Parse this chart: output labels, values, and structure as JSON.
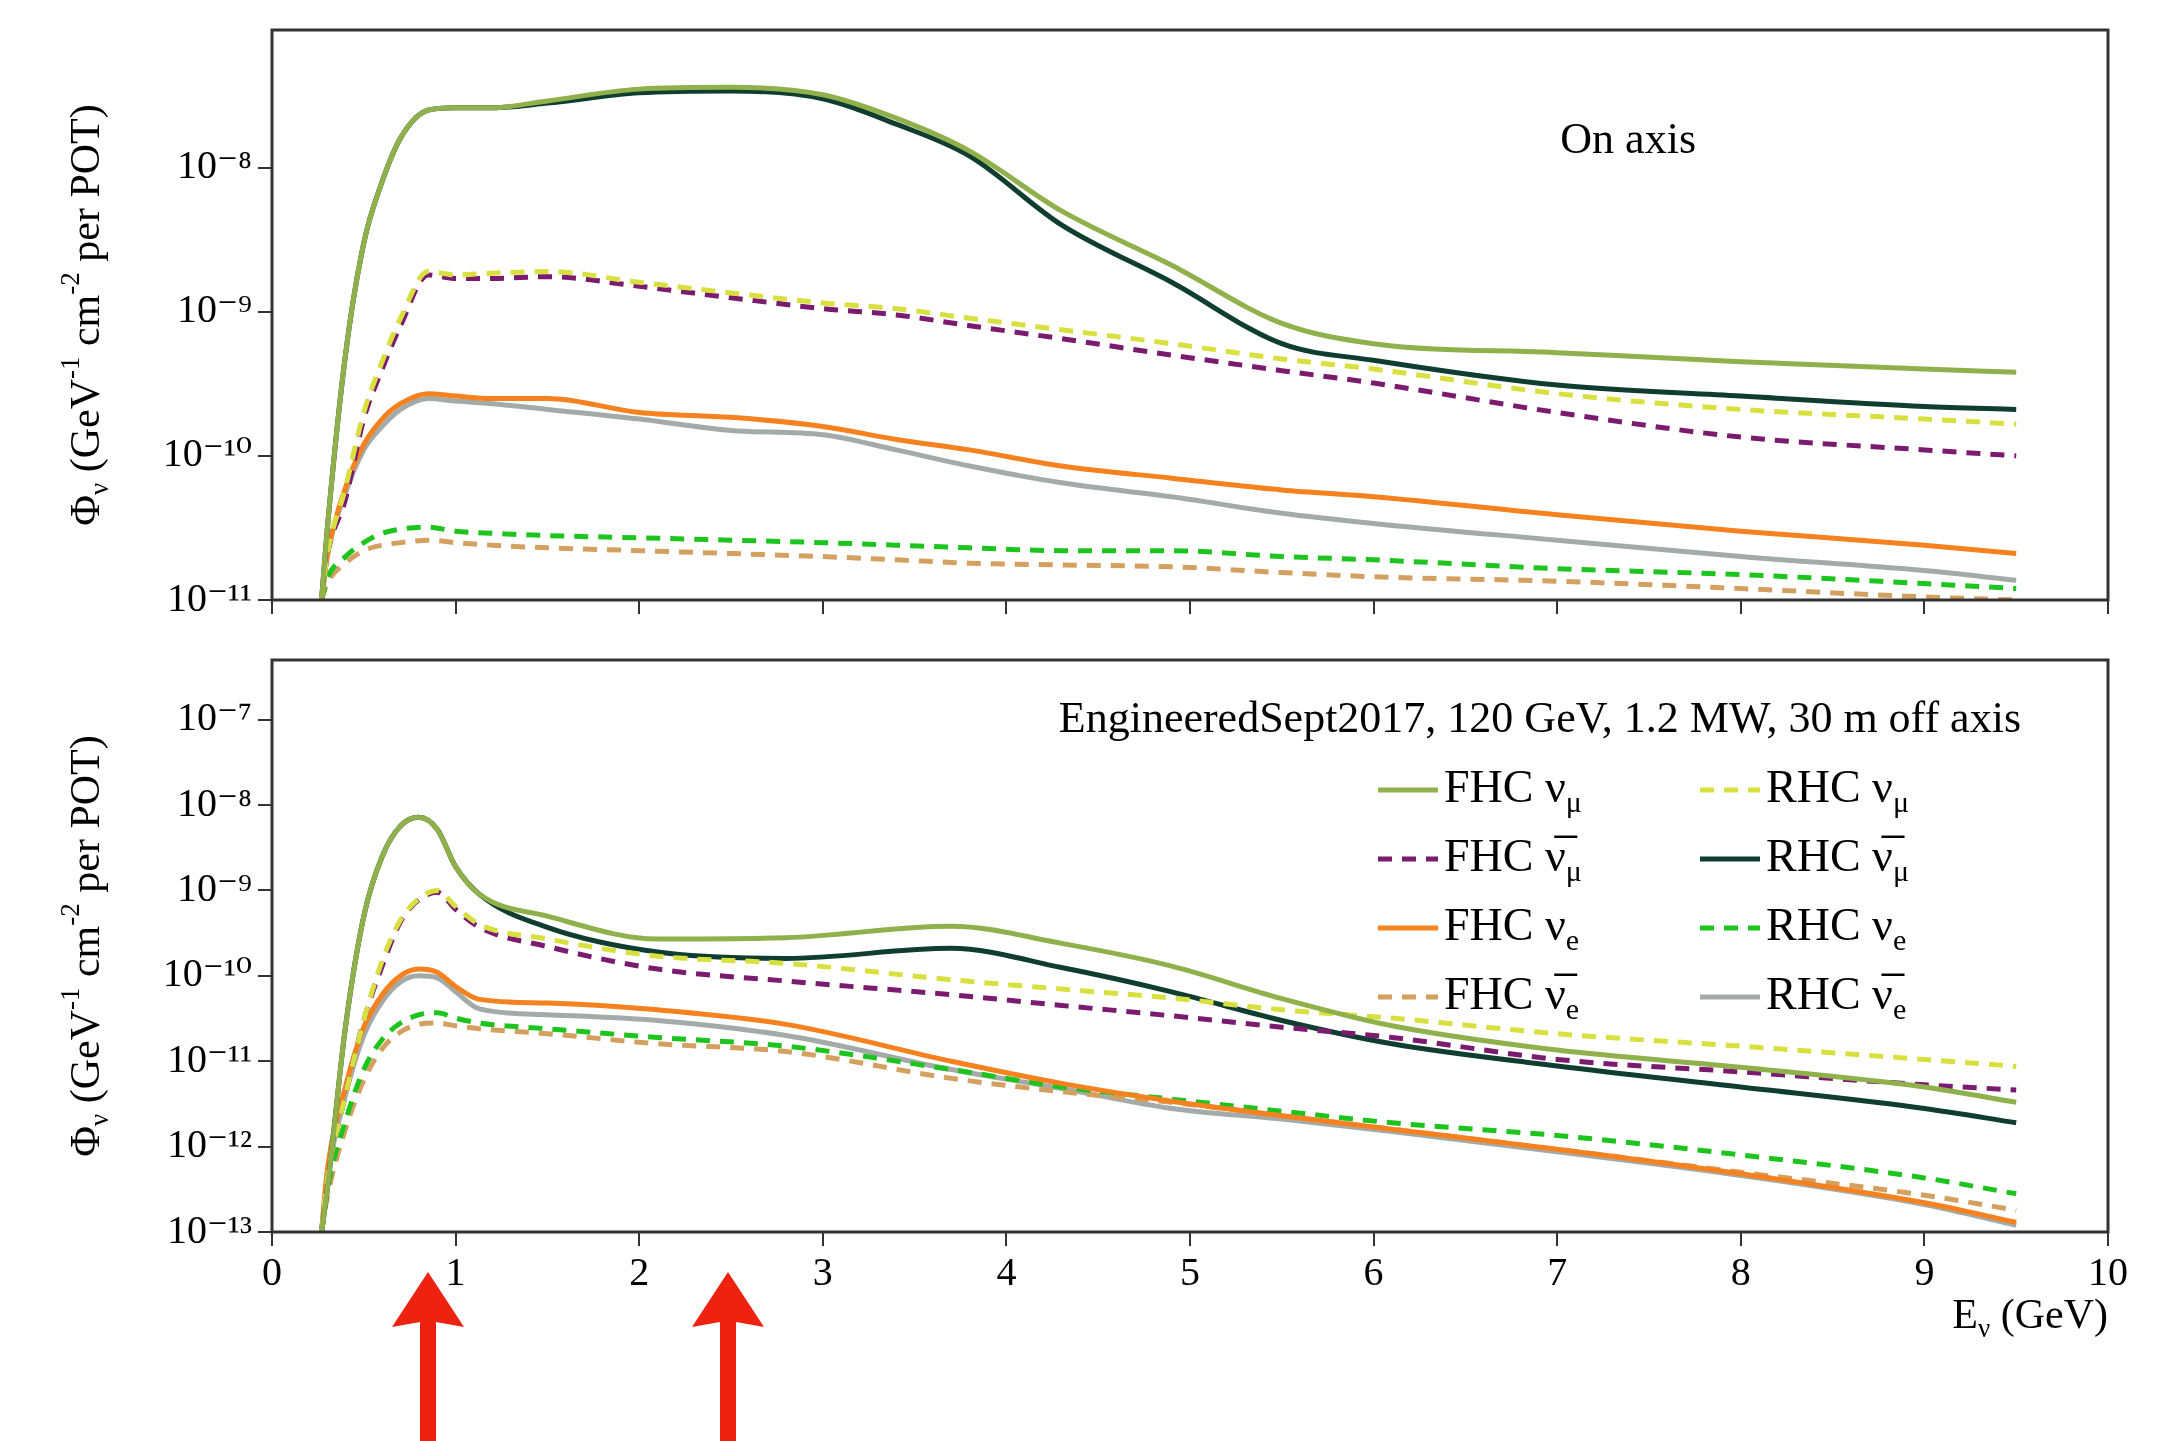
{
  "chart_data": [
    {
      "type": "line",
      "x": [
        0.27,
        0.3,
        0.4,
        0.5,
        0.6,
        0.7,
        0.85,
        1.0,
        1.2,
        1.5,
        2.0,
        2.5,
        3.0,
        3.4,
        3.8,
        4.3,
        4.9,
        5.5,
        6.0,
        7.0,
        8.0,
        9.0,
        9.5
      ],
      "series": [
        {
          "color": "#8fb04a",
          "line_style": "solid",
          "values": [
            1e-11,
            3e-11,
            5e-10,
            3e-09,
            8e-09,
            1.6e-08,
            2.5e-08,
            2.6e-08,
            2.6e-08,
            2.9e-08,
            3.5e-08,
            3.6e-08,
            3.2e-08,
            2.2e-08,
            1.3e-08,
            5e-09,
            2.1e-09,
            8.3e-10,
            6e-10,
            5.2e-10,
            4.5e-10,
            4e-10,
            3.8e-10
          ]
        },
        {
          "color": "#d8e040",
          "line_style": "dashed",
          "values": [
            1e-11,
            2e-11,
            6e-11,
            2e-10,
            4.5e-10,
            9e-10,
            1.9e-09,
            1.8e-09,
            1.85e-09,
            1.9e-09,
            1.6e-09,
            1.35e-09,
            1.15e-09,
            1.05e-09,
            9e-10,
            7.5e-10,
            6e-10,
            4.7e-10,
            4e-10,
            2.7e-10,
            2.1e-10,
            1.8e-10,
            1.66e-10
          ]
        },
        {
          "color": "#7b1b70",
          "line_style": "dashed",
          "values": [
            1e-11,
            2e-11,
            5e-11,
            1.8e-10,
            4e-10,
            8e-10,
            1.8e-09,
            1.7e-09,
            1.7e-09,
            1.75e-09,
            1.5e-09,
            1.25e-09,
            1.05e-09,
            9.5e-10,
            8e-10,
            6.5e-10,
            5e-10,
            3.9e-10,
            3.2e-10,
            2e-10,
            1.35e-10,
            1.1e-10,
            1e-10
          ]
        },
        {
          "color": "#0f3d30",
          "line_style": "solid",
          "values": [
            1e-11,
            3e-11,
            5e-10,
            3e-09,
            8e-09,
            1.6e-08,
            2.5e-08,
            2.6e-08,
            2.6e-08,
            2.8e-08,
            3.3e-08,
            3.4e-08,
            3e-08,
            2e-08,
            1.2e-08,
            4e-09,
            1.6e-09,
            6e-10,
            4.6e-10,
            3.1e-10,
            2.6e-10,
            2.2e-10,
            2.1e-10
          ]
        },
        {
          "color": "#f5821f",
          "line_style": "solid",
          "values": [
            1e-11,
            2e-11,
            6e-11,
            1.2e-10,
            1.8e-10,
            2.3e-10,
            2.7e-10,
            2.6e-10,
            2.5e-10,
            2.5e-10,
            2e-10,
            1.85e-10,
            1.6e-10,
            1.3e-10,
            1.1e-10,
            8.5e-11,
            7e-11,
            5.8e-11,
            5.2e-11,
            3.9e-11,
            3e-11,
            2.4e-11,
            2.1e-11
          ]
        },
        {
          "color": "#1ec41e",
          "line_style": "dashed",
          "values": [
            1e-11,
            1.4e-11,
            2e-11,
            2.5e-11,
            2.9e-11,
            3.1e-11,
            3.2e-11,
            3e-11,
            2.9e-11,
            2.8e-11,
            2.7e-11,
            2.6e-11,
            2.5e-11,
            2.4e-11,
            2.3e-11,
            2.2e-11,
            2.2e-11,
            2e-11,
            1.9e-11,
            1.65e-11,
            1.5e-11,
            1.3e-11,
            1.2e-11
          ]
        },
        {
          "color": "#d4a060",
          "line_style": "dashed",
          "values": [
            1e-11,
            1.3e-11,
            1.8e-11,
            2.2e-11,
            2.4e-11,
            2.5e-11,
            2.6e-11,
            2.5e-11,
            2.4e-11,
            2.3e-11,
            2.2e-11,
            2.1e-11,
            2e-11,
            1.9e-11,
            1.8e-11,
            1.75e-11,
            1.7e-11,
            1.55e-11,
            1.45e-11,
            1.35e-11,
            1.2e-11,
            1.05e-11,
            1e-11
          ]
        },
        {
          "color": "#a3abaa",
          "line_style": "solid",
          "values": [
            1e-11,
            2e-11,
            5.5e-11,
            1.1e-10,
            1.6e-10,
            2.1e-10,
            2.5e-10,
            2.4e-10,
            2.3e-10,
            2.1e-10,
            1.8e-10,
            1.5e-10,
            1.4e-10,
            1.1e-10,
            8.5e-11,
            6.5e-11,
            5.2e-11,
            4e-11,
            3.4e-11,
            2.6e-11,
            2e-11,
            1.6e-11,
            1.37e-11
          ]
        }
      ],
      "ylabel": "Φ$_{ν}$ (GeV$^{-1}$ cm$^{-2}$ per POT)",
      "annotations": [
        "On axis"
      ],
      "log": "y",
      "grid": false,
      "legend": false,
      "marker": "none",
      "tick_labels": "y",
      "xlim": [
        0,
        10
      ],
      "xticks": [
        0,
        1,
        2,
        3,
        4,
        5,
        6,
        7,
        8,
        9,
        10
      ],
      "ylim": [
        1e-11,
        9e-08
      ],
      "yticks": [
        {
          "value": 1e-11,
          "label": "10⁻¹¹"
        },
        {
          "value": 1e-10,
          "label": "10⁻¹⁰"
        },
        {
          "value": 1e-09,
          "label": "10⁻⁹"
        },
        {
          "value": 1e-08,
          "label": "10⁻⁸"
        }
      ]
    },
    {
      "type": "line",
      "x": [
        0.27,
        0.3,
        0.4,
        0.5,
        0.6,
        0.7,
        0.8,
        0.9,
        1.0,
        1.13,
        1.5,
        2.1,
        2.8,
        3.7,
        4.3,
        4.9,
        5.5,
        6.1,
        7.0,
        8.0,
        9.0,
        9.5
      ],
      "series": [
        {
          "name": "FHC ν$_{μ}$",
          "color": "#8fb04a",
          "line_style": "solid",
          "values": [
            1e-13,
            3e-13,
            2.5e-11,
            5e-10,
            2.5e-09,
            5.7e-09,
            7.2e-09,
            5.2e-09,
            1.9e-09,
            9e-10,
            5e-10,
            2.7e-10,
            2.8e-10,
            3.8e-10,
            2.4e-10,
            1.3e-10,
            5.4e-11,
            2.6e-11,
            1.35e-11,
            8.5e-12,
            5e-12,
            3.3e-12
          ]
        },
        {
          "name": "RHC ν$_{μ}$",
          "color": "#d8e040",
          "line_style": "dashed",
          "values": [
            1e-13,
            4e-13,
            4e-12,
            3e-11,
            1.5e-10,
            4.5e-10,
            8e-10,
            1e-09,
            6.5e-10,
            4e-10,
            2.7e-10,
            1.7e-10,
            1.4e-10,
            9e-11,
            7e-11,
            5.5e-11,
            4e-11,
            3.2e-11,
            2.1e-11,
            1.5e-11,
            1.05e-11,
            8.7e-12
          ]
        },
        {
          "name": "FHC ν̅$_{μ}$",
          "color": "#7b1b70",
          "line_style": "dashed",
          "values": [
            1e-13,
            4e-13,
            4e-12,
            3e-11,
            1.3e-10,
            4.3e-10,
            7.8e-10,
            9.5e-10,
            6e-10,
            3.7e-10,
            2.2e-10,
            1.2e-10,
            8.7e-11,
            6e-11,
            4.5e-11,
            3.4e-11,
            2.5e-11,
            1.9e-11,
            1.05e-11,
            7.5e-12,
            5.3e-12,
            4.6e-12
          ]
        },
        {
          "name": "RHC ν̅$_{μ}$",
          "color": "#0f3d30",
          "line_style": "solid",
          "values": [
            1e-13,
            3e-13,
            2.5e-11,
            5e-10,
            2.5e-09,
            5.7e-09,
            7.2e-09,
            5.2e-09,
            1.9e-09,
            9e-10,
            3.7e-10,
            1.9e-10,
            1.6e-10,
            2.1e-10,
            1.25e-10,
            6.5e-11,
            3e-11,
            1.6e-11,
            8.8e-12,
            5e-12,
            2.8e-12,
            1.9e-12
          ]
        },
        {
          "name": "FHC ν$_{e}$",
          "color": "#f5821f",
          "line_style": "solid",
          "values": [
            1e-13,
            5e-13,
            5e-12,
            2.5e-11,
            6e-11,
            1e-10,
            1.2e-10,
            1.1e-10,
            7.5e-11,
            5.3e-11,
            4.8e-11,
            4e-11,
            2.7e-11,
            1e-11,
            5.5e-12,
            3.4e-12,
            2.3e-12,
            1.6e-12,
            9.3e-13,
            4.8e-13,
            2.2e-13,
            1.3e-13
          ]
        },
        {
          "name": "RHC ν$_{e}$",
          "color": "#1ec41e",
          "line_style": "dashed",
          "values": [
            1e-13,
            3e-13,
            2e-12,
            8e-12,
            1.8e-11,
            2.8e-11,
            3.5e-11,
            3.7e-11,
            3.2e-11,
            2.8e-11,
            2.4e-11,
            1.9e-11,
            1.5e-11,
            8e-12,
            5e-12,
            3.6e-12,
            2.6e-12,
            1.9e-12,
            1.35e-12,
            8e-13,
            4.3e-13,
            2.8e-13
          ]
        },
        {
          "name": "FHC ν̅$_{e}$",
          "color": "#d4a060",
          "line_style": "dashed",
          "values": [
            1e-13,
            2.5e-13,
            1.6e-12,
            6e-12,
            1.4e-11,
            2.2e-11,
            2.7e-11,
            2.8e-11,
            2.6e-11,
            2.4e-11,
            2.1e-11,
            1.6e-11,
            1.3e-11,
            6.3e-12,
            4.4e-12,
            3.3e-12,
            2.3e-12,
            1.6e-12,
            9.3e-13,
            5e-13,
            2.7e-13,
            1.8e-13
          ]
        },
        {
          "name": "RHC ν̅$_{e}$",
          "color": "#a3abaa",
          "line_style": "solid",
          "values": [
            1e-13,
            4e-13,
            4e-12,
            2e-11,
            5e-11,
            8.5e-11,
            1e-10,
            9.5e-11,
            6.5e-11,
            4.1e-11,
            3.5e-11,
            3e-11,
            2e-11,
            8e-12,
            4.8e-12,
            2.8e-12,
            2.1e-12,
            1.5e-12,
            8.7e-13,
            4.6e-13,
            2.1e-13,
            1.2e-13
          ]
        }
      ],
      "xlabel": "E$_{ν}$ (GeV)",
      "ylabel": "Φ$_{ν}$ (GeV$^{-1}$ cm$^{-2}$ per POT)",
      "annotations": [
        "EngineeredSept2017, 120 GeV, 1.2 MW, 30 m off axis"
      ],
      "log": "y",
      "grid": false,
      "legend": "top right",
      "marker": "none",
      "xlim": [
        0,
        10
      ],
      "xticks": [
        0,
        1,
        2,
        3,
        4,
        5,
        6,
        7,
        8,
        9,
        10
      ],
      "ylim": [
        1e-13,
        5e-07
      ],
      "yticks": [
        {
          "value": 1e-13,
          "label": "10⁻¹³"
        },
        {
          "value": 1e-12,
          "label": "10⁻¹²"
        },
        {
          "value": 1e-11,
          "label": "10⁻¹¹"
        },
        {
          "value": 1e-10,
          "label": "10⁻¹⁰"
        },
        {
          "value": 1e-09,
          "label": "10⁻⁹"
        },
        {
          "value": 1e-08,
          "label": "10⁻⁸"
        },
        {
          "value": 1e-07,
          "label": "10⁻⁷"
        }
      ]
    }
  ]
}
